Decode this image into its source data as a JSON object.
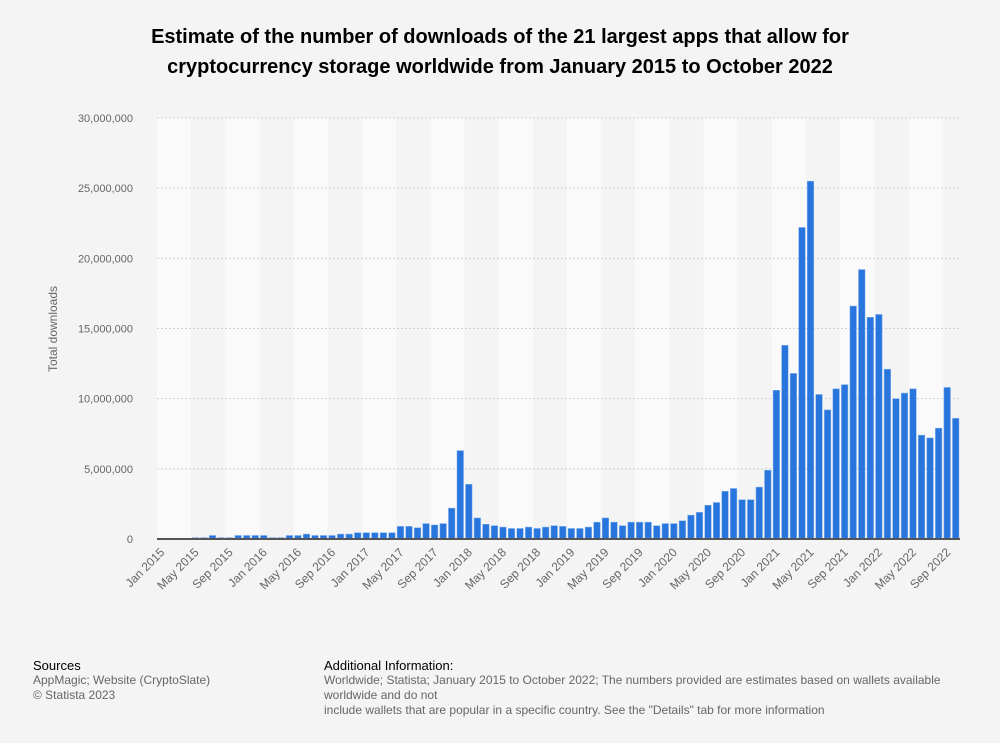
{
  "chart_data": {
    "type": "bar",
    "title": "Estimate of the number of downloads of the 21 largest apps that allow for cryptocurrency storage worldwide from January 2015 to October 2022",
    "xlabel": "",
    "ylabel": "Total downloads",
    "ylim": [
      0,
      30000000
    ],
    "yticks": [
      "0",
      "5,000,000",
      "10,000,000",
      "15,000,000",
      "20,000,000",
      "25,000,000",
      "30,000,000"
    ],
    "xtick_labels": [
      "Jan 2015",
      "May 2015",
      "Sep 2015",
      "Jan 2016",
      "May 2016",
      "Sep 2016",
      "Jan 2017",
      "May 2017",
      "Sep 2017",
      "Jan 2018",
      "May 2018",
      "Sep 2018",
      "Jan 2019",
      "May 2019",
      "Sep 2019",
      "Jan 2020",
      "May 2020",
      "Sep 2020",
      "Jan 2021",
      "May 2021",
      "Sep 2021",
      "Jan 2022",
      "May 2022",
      "Sep 2022"
    ],
    "start": "Jan 2015",
    "end": "Oct 2022",
    "grid": true,
    "bar_color": "#2876dd",
    "values": [
      0,
      0,
      0,
      50000,
      100000,
      100000,
      250000,
      100000,
      100000,
      250000,
      250000,
      250000,
      250000,
      100000,
      100000,
      250000,
      250000,
      350000,
      250000,
      250000,
      250000,
      350000,
      350000,
      450000,
      450000,
      450000,
      450000,
      450000,
      900000,
      900000,
      800000,
      1100000,
      1000000,
      1100000,
      2200000,
      6300000,
      3900000,
      1500000,
      1050000,
      950000,
      850000,
      750000,
      750000,
      850000,
      750000,
      850000,
      950000,
      900000,
      750000,
      750000,
      850000,
      1200000,
      1500000,
      1200000,
      950000,
      1200000,
      1200000,
      1200000,
      950000,
      1100000,
      1100000,
      1300000,
      1700000,
      1900000,
      2400000,
      2600000,
      3400000,
      3600000,
      2800000,
      2800000,
      3700000,
      4900000,
      10600000,
      13800000,
      11800000,
      22200000,
      25500000,
      10300000,
      9200000,
      10700000,
      11000000,
      16600000,
      19200000,
      15800000,
      16000000,
      12100000,
      10000000,
      10400000,
      10700000,
      7400000,
      7200000,
      7900000,
      10800000,
      8600000
    ]
  },
  "footer": {
    "sources_heading": "Sources",
    "sources_line1": "AppMagic; Website (CryptoSlate)",
    "sources_line2": "© Statista 2023",
    "info_heading": "Additional Information:",
    "info_line1": "Worldwide; Statista; January 2015 to October 2022; The numbers provided are estimates based on wallets available worldwide and do not",
    "info_line2": "include wallets that are popular in a specific country. See the \"Details\" tab for more information"
  }
}
